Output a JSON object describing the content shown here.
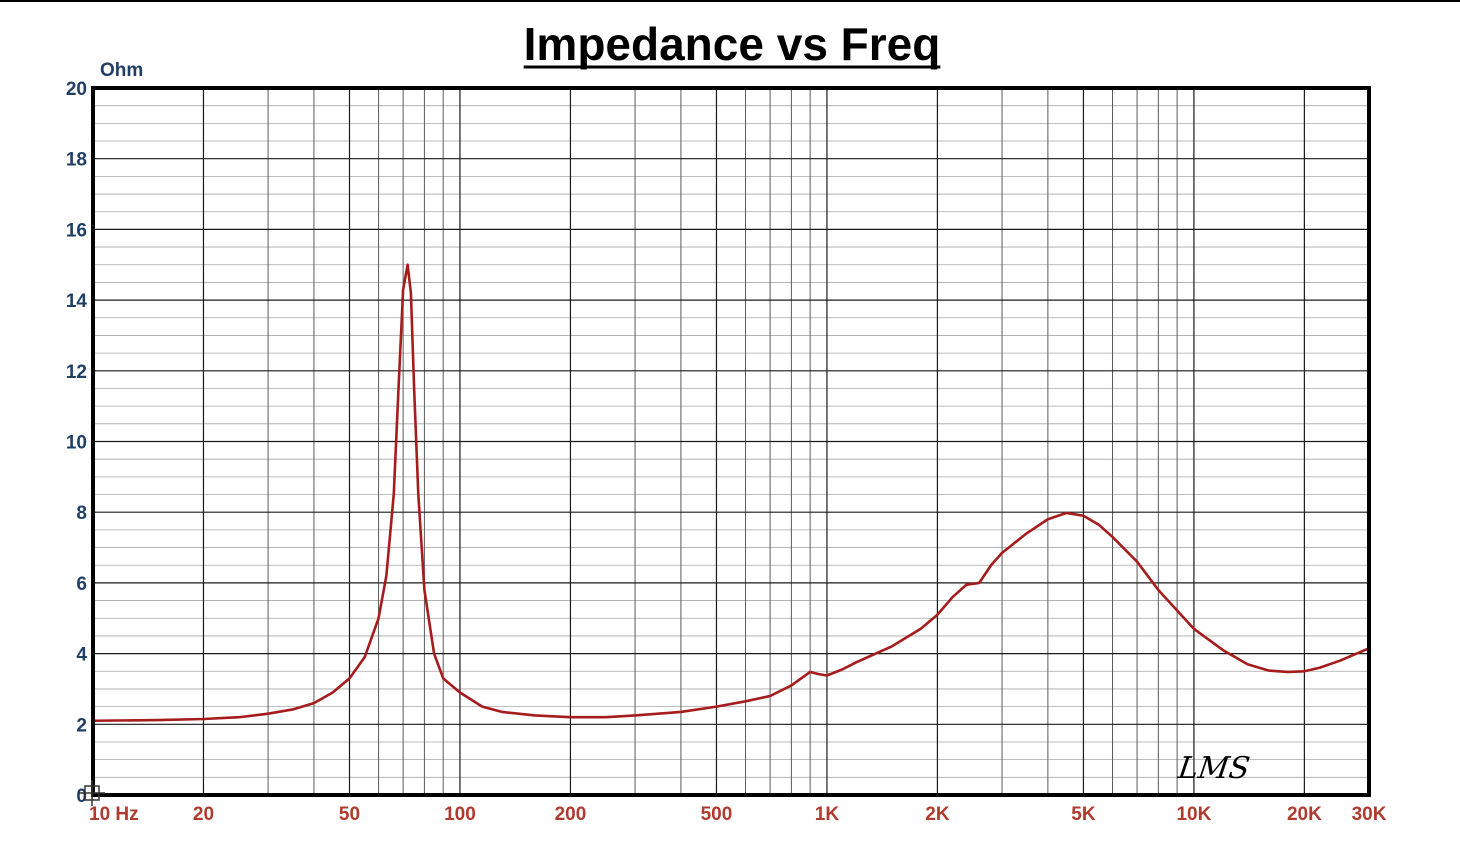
{
  "chart_data": {
    "type": "line",
    "title": "Impedance vs Freq",
    "y_unit_label": "Ohm",
    "x_scale": "log",
    "xlim": [
      10,
      30000
    ],
    "ylim": [
      0,
      20
    ],
    "grid": true,
    "y_ticks": [
      "0",
      "2",
      "4",
      "6",
      "8",
      "10",
      "12",
      "14",
      "16",
      "18",
      "20"
    ],
    "x_ticks": [
      {
        "value": 10,
        "label": "10 Hz"
      },
      {
        "value": 20,
        "label": "20"
      },
      {
        "value": 50,
        "label": "50"
      },
      {
        "value": 100,
        "label": "100"
      },
      {
        "value": 200,
        "label": "200"
      },
      {
        "value": 500,
        "label": "500"
      },
      {
        "value": 1000,
        "label": "1K"
      },
      {
        "value": 2000,
        "label": "2K"
      },
      {
        "value": 5000,
        "label": "5K"
      },
      {
        "value": 10000,
        "label": "10K"
      },
      {
        "value": 20000,
        "label": "20K"
      },
      {
        "value": 30000,
        "label": "30K"
      }
    ],
    "series": [
      {
        "color": "#a61c1c",
        "points": [
          [
            10,
            2.1
          ],
          [
            15,
            2.12
          ],
          [
            20,
            2.15
          ],
          [
            25,
            2.2
          ],
          [
            30,
            2.3
          ],
          [
            35,
            2.42
          ],
          [
            40,
            2.6
          ],
          [
            45,
            2.9
          ],
          [
            50,
            3.3
          ],
          [
            55,
            3.9
          ],
          [
            60,
            5.0
          ],
          [
            63,
            6.2
          ],
          [
            66,
            8.5
          ],
          [
            68,
            11.5
          ],
          [
            70,
            14.3
          ],
          [
            72,
            15.0
          ],
          [
            73.5,
            14.2
          ],
          [
            75,
            11.5
          ],
          [
            77,
            8.5
          ],
          [
            80,
            5.8
          ],
          [
            85,
            4.0
          ],
          [
            90,
            3.3
          ],
          [
            100,
            2.9
          ],
          [
            115,
            2.5
          ],
          [
            130,
            2.35
          ],
          [
            160,
            2.25
          ],
          [
            200,
            2.2
          ],
          [
            250,
            2.2
          ],
          [
            300,
            2.25
          ],
          [
            400,
            2.35
          ],
          [
            500,
            2.5
          ],
          [
            600,
            2.65
          ],
          [
            700,
            2.8
          ],
          [
            800,
            3.1
          ],
          [
            900,
            3.48
          ],
          [
            950,
            3.42
          ],
          [
            1000,
            3.38
          ],
          [
            1100,
            3.55
          ],
          [
            1200,
            3.75
          ],
          [
            1500,
            4.2
          ],
          [
            1800,
            4.7
          ],
          [
            2000,
            5.1
          ],
          [
            2200,
            5.6
          ],
          [
            2400,
            5.95
          ],
          [
            2600,
            6.0
          ],
          [
            2800,
            6.5
          ],
          [
            3000,
            6.85
          ],
          [
            3500,
            7.4
          ],
          [
            4000,
            7.8
          ],
          [
            4500,
            7.98
          ],
          [
            5000,
            7.9
          ],
          [
            5500,
            7.65
          ],
          [
            6000,
            7.3
          ],
          [
            7000,
            6.6
          ],
          [
            8000,
            5.8
          ],
          [
            10000,
            4.7
          ],
          [
            12000,
            4.1
          ],
          [
            14000,
            3.7
          ],
          [
            16000,
            3.52
          ],
          [
            18000,
            3.48
          ],
          [
            20000,
            3.5
          ],
          [
            22000,
            3.6
          ],
          [
            25000,
            3.8
          ],
          [
            30000,
            4.15
          ]
        ]
      }
    ],
    "logo_text": "LMS"
  }
}
